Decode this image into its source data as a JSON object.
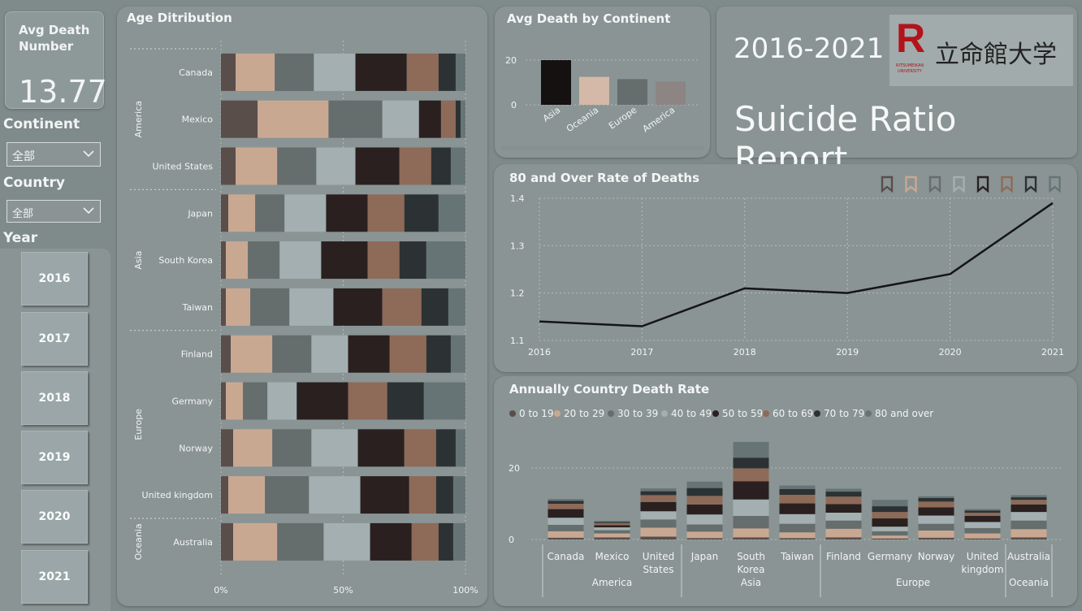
{
  "kpi": {
    "label_line1": "Avg Death",
    "label_line2": "Number",
    "value": "13.77"
  },
  "slicers": {
    "continent_label": "Continent",
    "continent_value": "全部",
    "country_label": "Country",
    "country_value": "全部",
    "year_label": "Year",
    "years": [
      "2016",
      "2017",
      "2018",
      "2019",
      "2020",
      "2021"
    ]
  },
  "header": {
    "years": "2016-2021",
    "report_title": "Suicide Ratio Report",
    "logo_letter": "R",
    "logo_sub_line1": "RITSUMEIKAN",
    "logo_sub_line2": "UNIVERSITY",
    "logo_kanji": "立命館大学"
  },
  "colors": {
    "age_colors": [
      "#5a4e4b",
      "#c9a892",
      "#656d6d",
      "#a3afb0",
      "#2a2020",
      "#8e6a58",
      "#2c3233",
      "#667476"
    ],
    "continent_bars": [
      "#151111",
      "#d4b9a8",
      "#656d6d",
      "#8d8484"
    ]
  },
  "age_distribution": {
    "title": "Age Ditribution",
    "x_ticks": [
      "0%",
      "50%",
      "100%"
    ],
    "groups": [
      {
        "label": "America",
        "rows": [
          0,
          1,
          2
        ]
      },
      {
        "label": "Asia",
        "rows": [
          3,
          4,
          5
        ]
      },
      {
        "label": "Europe",
        "rows": [
          6,
          7,
          8,
          9
        ]
      },
      {
        "label": "Oceania",
        "rows": [
          10
        ]
      }
    ],
    "chart_data": {
      "type": "bar",
      "orientation": "horizontal-stacked-100",
      "categories": [
        "Canada",
        "Mexico",
        "United States",
        "Japan",
        "South Korea",
        "Taiwan",
        "Finland",
        "Germany",
        "Norway",
        "United kingdom",
        "Australia"
      ],
      "series": [
        {
          "name": "0 to 19",
          "values": [
            6,
            15,
            6,
            3,
            2,
            2,
            4,
            2,
            5,
            3,
            5
          ]
        },
        {
          "name": "20 to 29",
          "values": [
            16,
            29,
            17,
            11,
            9,
            10,
            17,
            7,
            16,
            15,
            18
          ]
        },
        {
          "name": "30 to 39",
          "values": [
            16,
            22,
            16,
            12,
            13,
            16,
            16,
            10,
            16,
            18,
            19
          ]
        },
        {
          "name": "40 to 49",
          "values": [
            17,
            15,
            16,
            17,
            17,
            18,
            15,
            12,
            19,
            21,
            19
          ]
        },
        {
          "name": "50 to 59",
          "values": [
            21,
            9,
            18,
            17,
            19,
            20,
            17,
            21,
            19,
            20,
            17
          ]
        },
        {
          "name": "60 to 69",
          "values": [
            13,
            6,
            13,
            15,
            13,
            16,
            15,
            16,
            13,
            11,
            11
          ]
        },
        {
          "name": "70 to 79",
          "values": [
            7,
            2,
            8,
            14,
            11,
            11,
            10,
            15,
            8,
            7,
            6
          ]
        },
        {
          "name": "80 and over",
          "values": [
            4,
            2,
            6,
            11,
            16,
            7,
            6,
            17,
            4,
            5,
            5
          ]
        }
      ],
      "xlim": [
        0,
        100
      ]
    }
  },
  "avg_death_continent": {
    "title": "Avg Death by Continent",
    "y_ticks": [
      "0",
      "20"
    ],
    "chart_data": {
      "type": "bar",
      "categories": [
        "Asia",
        "Oceania",
        "Europe",
        "America"
      ],
      "values": [
        20,
        12.5,
        11.5,
        10.5
      ],
      "ylim": [
        0,
        20
      ]
    }
  },
  "rate_80_over": {
    "title": "80 and Over Rate of Deaths",
    "y_ticks": [
      "1.1",
      "1.2",
      "1.3",
      "1.4"
    ],
    "chart_data": {
      "type": "line",
      "x": [
        "2016",
        "2017",
        "2018",
        "2019",
        "2020",
        "2021"
      ],
      "y": [
        1.14,
        1.13,
        1.21,
        1.2,
        1.24,
        1.39
      ],
      "ylim": [
        1.1,
        1.4
      ]
    }
  },
  "annual_country": {
    "title": "Annually Country Death Rate",
    "y_ticks": [
      "0",
      "20"
    ],
    "x_tick_lines": [
      [
        "Canada"
      ],
      [
        "Mexico"
      ],
      [
        "United",
        "States"
      ],
      [
        "Japan"
      ],
      [
        "South",
        "Korea"
      ],
      [
        "Taiwan"
      ],
      [
        "Finland"
      ],
      [
        "Germany"
      ],
      [
        "Norway"
      ],
      [
        "United",
        "kingdom"
      ],
      [
        "Australia"
      ]
    ],
    "continent_axis": [
      "America",
      "Asia",
      "Europe",
      "Oceania"
    ],
    "chart_data": {
      "type": "bar",
      "stacked": true,
      "categories": [
        "Canada",
        "Mexico",
        "United States",
        "Japan",
        "South Korea",
        "Taiwan",
        "Finland",
        "Germany",
        "Norway",
        "United kingdom",
        "Australia"
      ],
      "series": [
        {
          "name": "0 to 19",
          "values": [
            0.5,
            0.6,
            0.8,
            0.4,
            0.6,
            0.4,
            0.6,
            0.3,
            0.5,
            0.3,
            0.6
          ]
        },
        {
          "name": "20 to 29",
          "values": [
            1.8,
            1.1,
            2.5,
            1.8,
            2.5,
            1.6,
            2.4,
            0.8,
            2.0,
            1.4,
            2.3
          ]
        },
        {
          "name": "30 to 39",
          "values": [
            1.8,
            0.9,
            2.3,
            2.0,
            3.5,
            2.4,
            2.3,
            1.2,
            1.9,
            1.5,
            2.4
          ]
        },
        {
          "name": "40 to 49",
          "values": [
            2.0,
            0.8,
            2.3,
            2.8,
            4.6,
            2.7,
            2.2,
            1.3,
            2.3,
            1.7,
            2.4
          ]
        },
        {
          "name": "50 to 59",
          "values": [
            2.4,
            0.6,
            2.6,
            2.8,
            5.1,
            3.0,
            2.4,
            2.3,
            2.3,
            1.7,
            2.1
          ]
        },
        {
          "name": "60 to 69",
          "values": [
            1.5,
            0.6,
            1.9,
            2.4,
            3.6,
            2.4,
            2.1,
            1.8,
            1.6,
            0.9,
            1.3
          ]
        },
        {
          "name": "70 to 79",
          "values": [
            0.8,
            0.3,
            1.1,
            2.2,
            3.0,
            1.6,
            1.4,
            1.6,
            1.0,
            0.6,
            0.7
          ]
        },
        {
          "name": "80 and over",
          "values": [
            0.5,
            0.3,
            0.8,
            1.8,
            4.4,
            1.0,
            0.8,
            1.8,
            0.5,
            0.4,
            0.6
          ]
        }
      ],
      "ylim": [
        0,
        28
      ]
    }
  },
  "legend_names": [
    "0 to 19",
    "20 to 29",
    "30 to 39",
    "40 to 49",
    "50 to 59",
    "60 to 69",
    "70 to 79",
    "80 and over"
  ]
}
